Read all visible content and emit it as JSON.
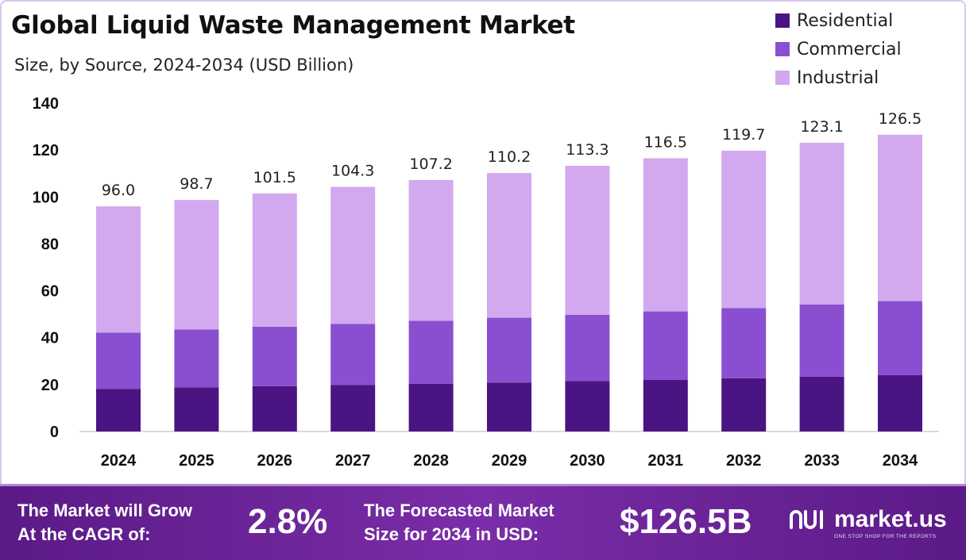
{
  "header": {
    "title": "Global Liquid Waste Management Market",
    "subtitle": "Size, by Source, 2024-2034 (USD Billion)"
  },
  "legend": {
    "items": [
      {
        "label": "Residential",
        "color": "#4a1482"
      },
      {
        "label": "Commercial",
        "color": "#8a4fd0"
      },
      {
        "label": "Industrial",
        "color": "#d2a9ee"
      }
    ]
  },
  "chart_data": {
    "type": "bar",
    "stacked": true,
    "categories": [
      "2024",
      "2025",
      "2026",
      "2027",
      "2028",
      "2029",
      "2030",
      "2031",
      "2032",
      "2033",
      "2034"
    ],
    "series": [
      {
        "name": "Residential",
        "color": "#4a1482",
        "values": [
          18.2,
          18.8,
          19.3,
          19.8,
          20.4,
          20.9,
          21.5,
          22.1,
          22.7,
          23.4,
          24.0
        ]
      },
      {
        "name": "Commercial",
        "color": "#8a4fd0",
        "values": [
          24.0,
          24.7,
          25.4,
          26.1,
          26.8,
          27.6,
          28.3,
          29.1,
          29.9,
          30.8,
          31.6
        ]
      },
      {
        "name": "Industrial",
        "color": "#d2a9ee",
        "values": [
          53.8,
          55.2,
          56.8,
          58.4,
          60.0,
          61.7,
          63.5,
          65.3,
          67.1,
          68.9,
          70.9
        ]
      }
    ],
    "totals": [
      "96.0",
      "98.7",
      "101.5",
      "104.3",
      "107.2",
      "110.2",
      "113.3",
      "116.5",
      "119.7",
      "123.1",
      "126.5"
    ],
    "ylim": [
      0,
      140
    ],
    "yticks": [
      "0",
      "20",
      "40",
      "60",
      "80",
      "100",
      "120",
      "140"
    ],
    "grid": false,
    "legend_position": "top-right"
  },
  "footer": {
    "cagr_label": "The Market will Grow\nAt the CAGR of:",
    "cagr_value": "2.8%",
    "forecast_label": "The Forecasted Market\nSize for 2034 in USD:",
    "forecast_value": "$126.5B",
    "brand_name": "market.us",
    "brand_tagline": "ONE STOP SHOP FOR THE REPORTS",
    "background_color": "#6a2396"
  }
}
